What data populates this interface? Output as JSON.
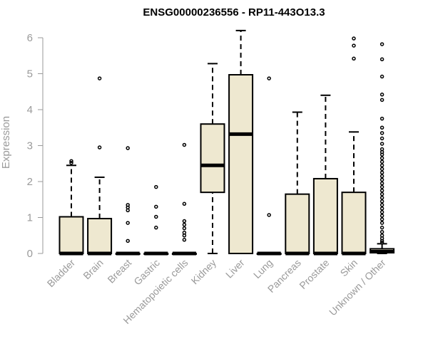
{
  "chart_data": {
    "type": "box",
    "title": "ENSG00000236556 - RP11-443O13.3",
    "xlabel": "",
    "ylabel": "Expression",
    "ylim": [
      0,
      6.2
    ],
    "yticks": [
      0,
      1,
      2,
      3,
      4,
      5,
      6
    ],
    "box_fill": "#eee8d0",
    "axis_color": "#9a9a9a",
    "categories": [
      "Bladder",
      "Brain",
      "Breast",
      "Gastric",
      "Hematopoietic cells",
      "Kidney",
      "Liver",
      "Lung",
      "Pancreas",
      "Prostate",
      "Skin",
      "Unknown / Other"
    ],
    "boxes": [
      {
        "min": 0,
        "q1": 0,
        "median": 0,
        "q3": 1.02,
        "max": 2.45,
        "outliers": [
          2.52,
          2.57
        ]
      },
      {
        "min": 0,
        "q1": 0,
        "median": 0,
        "q3": 0.97,
        "max": 2.12,
        "outliers": [
          2.95,
          4.87
        ]
      },
      {
        "min": 0,
        "q1": 0,
        "median": 0,
        "q3": 0,
        "max": 0,
        "outliers": [
          0.35,
          0.85,
          1.2,
          1.28,
          1.35,
          2.93
        ]
      },
      {
        "min": 0,
        "q1": 0,
        "median": 0,
        "q3": 0,
        "max": 0,
        "outliers": [
          0.72,
          1.02,
          1.3,
          1.85
        ]
      },
      {
        "min": 0,
        "q1": 0,
        "median": 0,
        "q3": 0,
        "max": 0,
        "outliers": [
          0.38,
          0.5,
          0.58,
          0.7,
          0.8,
          0.9,
          1.38,
          3.02
        ]
      },
      {
        "min": 0,
        "q1": 1.7,
        "median": 2.45,
        "q3": 3.6,
        "max": 5.28,
        "outliers": []
      },
      {
        "min": 0,
        "q1": 0,
        "median": 3.32,
        "q3": 4.97,
        "max": 6.2,
        "outliers": []
      },
      {
        "min": 0,
        "q1": 0,
        "median": 0,
        "q3": 0,
        "max": 0,
        "outliers": [
          1.07,
          4.87
        ]
      },
      {
        "min": 0,
        "q1": 0,
        "median": 0,
        "q3": 1.65,
        "max": 3.93,
        "outliers": []
      },
      {
        "min": 0,
        "q1": 0,
        "median": 0,
        "q3": 2.08,
        "max": 4.4,
        "outliers": []
      },
      {
        "min": 0,
        "q1": 0,
        "median": 0,
        "q3": 1.7,
        "max": 3.38,
        "outliers": [
          5.42,
          5.78,
          5.98
        ]
      },
      {
        "min": 0,
        "q1": 0.02,
        "median": 0.05,
        "q3": 0.13,
        "max": 0.27,
        "outliers": [
          0.3,
          0.35,
          0.42,
          0.5,
          0.6,
          0.72,
          0.85,
          0.95,
          1.05,
          1.15,
          1.25,
          1.35,
          1.45,
          1.55,
          1.65,
          1.75,
          1.85,
          1.95,
          2.05,
          2.15,
          2.25,
          2.35,
          2.45,
          2.55,
          2.65,
          2.75,
          2.82,
          2.9,
          3.05,
          3.2,
          3.35,
          3.5,
          3.75,
          4.27,
          4.42,
          4.92,
          5.4,
          5.82
        ]
      }
    ]
  }
}
